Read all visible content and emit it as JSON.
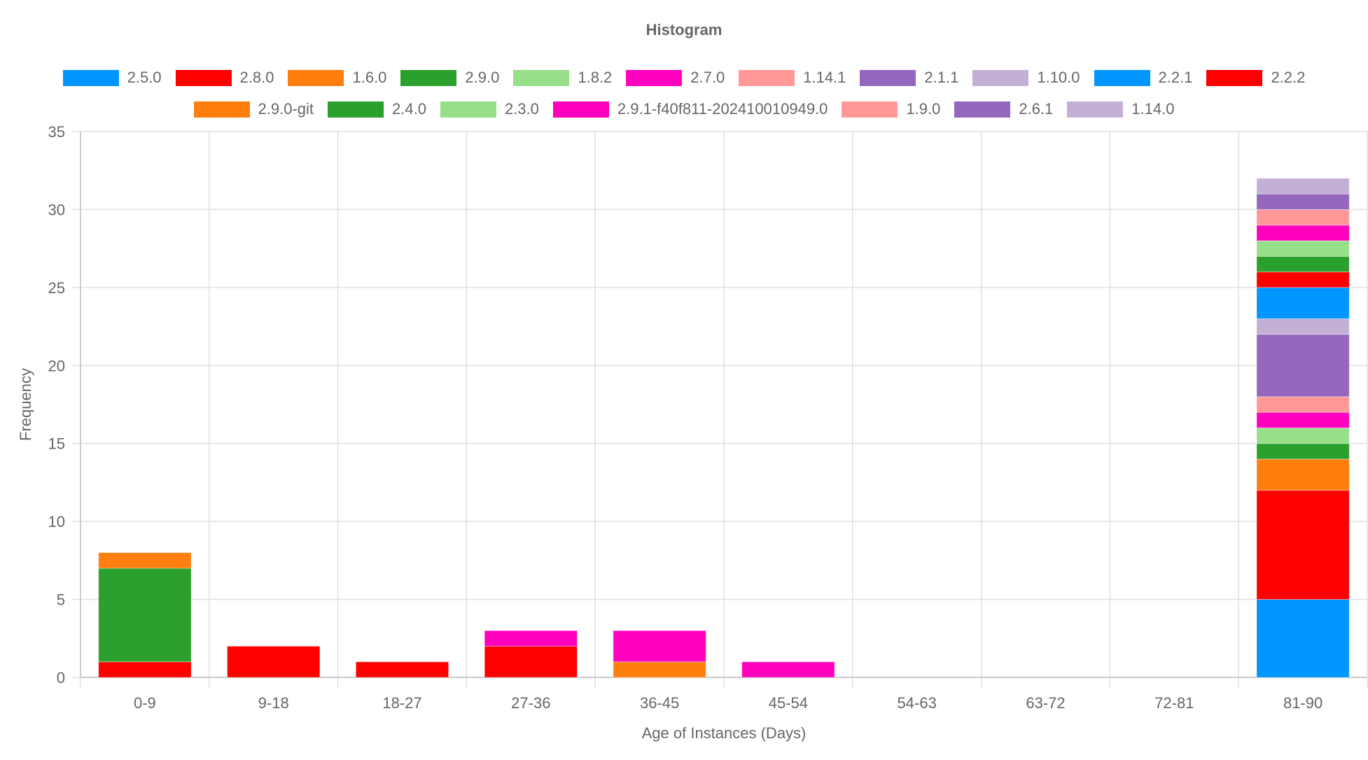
{
  "chart_data": {
    "type": "bar",
    "stacked": true,
    "title": "Histogram",
    "xlabel": "Age of Instances (Days)",
    "ylabel": "Frequency",
    "ylim": [
      0,
      35
    ],
    "yticks": [
      0,
      5,
      10,
      15,
      20,
      25,
      30,
      35
    ],
    "grid": true,
    "legend_position": "top",
    "categories": [
      "0-9",
      "9-18",
      "18-27",
      "27-36",
      "36-45",
      "45-54",
      "54-63",
      "63-72",
      "72-81",
      "81-90"
    ],
    "series": [
      {
        "name": "2.5.0",
        "color": "#0096FF",
        "values": [
          0,
          0,
          0,
          0,
          0,
          0,
          0,
          0,
          0,
          5
        ]
      },
      {
        "name": "2.8.0",
        "color": "#FF0000",
        "values": [
          1,
          2,
          1,
          2,
          0,
          0,
          0,
          0,
          0,
          7
        ]
      },
      {
        "name": "1.6.0",
        "color": "#FF7F0E",
        "values": [
          0,
          0,
          0,
          0,
          1,
          0,
          0,
          0,
          0,
          2
        ]
      },
      {
        "name": "2.9.0",
        "color": "#2CA02C",
        "values": [
          6,
          0,
          0,
          0,
          0,
          0,
          0,
          0,
          0,
          1
        ]
      },
      {
        "name": "1.8.2",
        "color": "#98DF8A",
        "values": [
          0,
          0,
          0,
          0,
          0,
          0,
          0,
          0,
          0,
          1
        ]
      },
      {
        "name": "2.7.0",
        "color": "#FF00BF",
        "values": [
          0,
          0,
          0,
          1,
          2,
          1,
          0,
          0,
          0,
          1
        ]
      },
      {
        "name": "1.14.1",
        "color": "#FF9896",
        "values": [
          0,
          0,
          0,
          0,
          0,
          0,
          0,
          0,
          0,
          1
        ]
      },
      {
        "name": "2.1.1",
        "color": "#9467BD",
        "values": [
          0,
          0,
          0,
          0,
          0,
          0,
          0,
          0,
          0,
          4
        ]
      },
      {
        "name": "1.10.0",
        "color": "#C5B0D5",
        "values": [
          0,
          0,
          0,
          0,
          0,
          0,
          0,
          0,
          0,
          1
        ]
      },
      {
        "name": "2.2.1",
        "color": "#0096FF",
        "values": [
          0,
          0,
          0,
          0,
          0,
          0,
          0,
          0,
          0,
          2
        ]
      },
      {
        "name": "2.2.2",
        "color": "#FF0000",
        "values": [
          0,
          0,
          0,
          0,
          0,
          0,
          0,
          0,
          0,
          1
        ]
      },
      {
        "name": "2.9.0-git",
        "color": "#FF7F0E",
        "values": [
          1,
          0,
          0,
          0,
          0,
          0,
          0,
          0,
          0,
          0
        ]
      },
      {
        "name": "2.4.0",
        "color": "#2CA02C",
        "values": [
          0,
          0,
          0,
          0,
          0,
          0,
          0,
          0,
          0,
          1
        ]
      },
      {
        "name": "2.3.0",
        "color": "#98DF8A",
        "values": [
          0,
          0,
          0,
          0,
          0,
          0,
          0,
          0,
          0,
          1
        ]
      },
      {
        "name": "2.9.1-f40f811-202410010949.0",
        "color": "#FF00BF",
        "values": [
          0,
          0,
          0,
          0,
          0,
          0,
          0,
          0,
          0,
          1
        ]
      },
      {
        "name": "1.9.0",
        "color": "#FF9896",
        "values": [
          0,
          0,
          0,
          0,
          0,
          0,
          0,
          0,
          0,
          1
        ]
      },
      {
        "name": "2.6.1",
        "color": "#9467BD",
        "values": [
          0,
          0,
          0,
          0,
          0,
          0,
          0,
          0,
          0,
          1
        ]
      },
      {
        "name": "1.14.0",
        "color": "#C5B0D5",
        "values": [
          0,
          0,
          0,
          0,
          0,
          0,
          0,
          0,
          0,
          1
        ]
      }
    ]
  }
}
